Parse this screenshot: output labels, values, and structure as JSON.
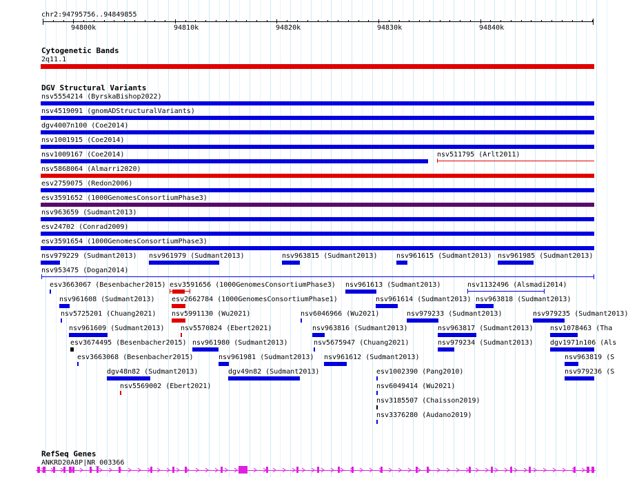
{
  "colors": {
    "blue": "#0000e0",
    "red": "#e00000",
    "purple": "#5a0a6a",
    "black": "#000000",
    "gene": "#e020e0"
  },
  "ruler": {
    "position": "chr2:94795756..94849855",
    "ticks": [
      "94800k",
      "94810k",
      "94820k",
      "94830k",
      "94840k"
    ]
  },
  "cytoband": {
    "title": "Cytogenetic Bands",
    "band": "2q11.1"
  },
  "dgv": {
    "title": "DGV Structural Variants",
    "full_tracks": [
      "nsv5554214 (ByrskaBishop2022)",
      "nsv4519091 (gnomADStructuralVariants)",
      "dgv4007n100 (Coe2014)",
      "nsv1001915 (Coe2014)",
      "nsv1009167 (Coe2014)",
      "nsv511795 (Arlt2011)",
      "nsv5868064 (Almarri2020)",
      "esv2759075 (Redon2006)",
      "esv3591652 (1000GenomesConsortiumPhase3)",
      "nsv963659 (Sudmant2013)",
      "esv24702 (Conrad2009)",
      "esv3591654 (1000GenomesConsortiumPhase3)"
    ],
    "small_items": [
      "nsv979229 (Sudmant2013)",
      "nsv961979 (Sudmant2013)",
      "nsv963815 (Sudmant2013)",
      "nsv961615 (Sudmant2013)",
      "nsv961985 (Sudmant2013)",
      "nsv953475 (Dogan2014)",
      "esv3663067 (Besenbacher2015)",
      "esv3591656 (1000GenomesConsortiumPhase3)",
      "nsv961613 (Sudmant2013)",
      "nsv1132496 (Alsmadi2014)",
      "nsv961608 (Sudmant2013)",
      "esv2662784 (1000GenomesConsortiumPhase1)",
      "nsv961614 (Sudmant2013)",
      "nsv963818 (Sudmant2013)",
      "nsv5725201 (Chuang2021)",
      "nsv5991130 (Wu2021)",
      "nsv6046966 (Wu2021)",
      "nsv979233 (Sudmant2013)",
      "nsv979235 (Sudmant2013)",
      "nsv961609 (Sudmant2013)",
      "nsv5570824 (Ebert2021)",
      "nsv963816 (Sudmant2013)",
      "nsv963817 (Sudmant2013)",
      "nsv1078463 (Tha",
      "esv3674495 (Besenbacher2015)",
      "nsv961980 (Sudmant2013)",
      "nsv5675947 (Chuang2021)",
      "nsv979234 (Sudmant2013)",
      "dgv1971n106 (Als",
      "esv3663068 (Besenbacher2015)",
      "nsv961981 (Sudmant2013)",
      "nsv961612 (Sudmant2013)",
      "nsv963819 (S",
      "dgv48n82 (Sudmant2013)",
      "dgv49n82 (Sudmant2013)",
      "esv1002390 (Pang2010)",
      "nsv979236 (S",
      "nsv5569002 (Ebert2021)",
      "nsv6049414 (Wu2021)",
      "nsv3185507 (Chaisson2019)",
      "nsv3376280 (Audano2019)"
    ]
  },
  "refseq": {
    "title": "RefSeq Genes",
    "gene": "ANKRD20A8P|NR_003366"
  }
}
